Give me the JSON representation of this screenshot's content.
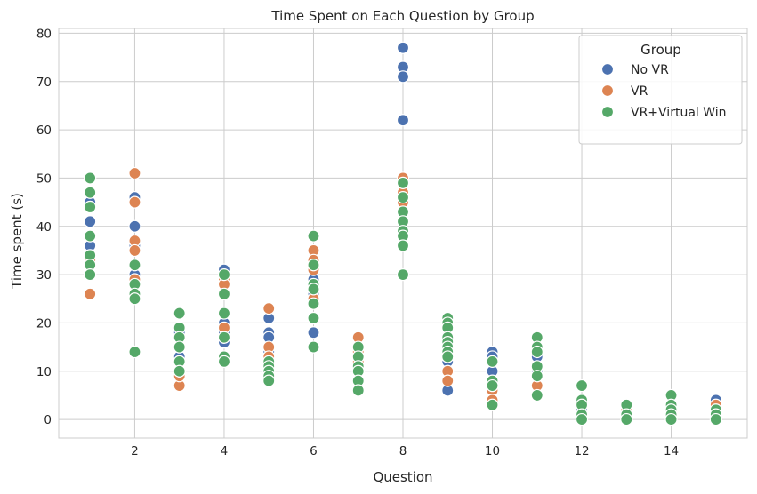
{
  "chart_data": {
    "type": "scatter",
    "title": "Time Spent on Each Question by Group",
    "xlabel": "Question",
    "ylabel": "Time spent (s)",
    "xlim": [
      0.3,
      15.7
    ],
    "ylim": [
      -3.85,
      81
    ],
    "xticks": [
      2,
      4,
      6,
      8,
      10,
      12,
      14
    ],
    "yticks": [
      0,
      10,
      20,
      30,
      40,
      50,
      60,
      70,
      80
    ],
    "grid": true,
    "legend": {
      "title": "Group",
      "placement": "top-right"
    },
    "series": [
      {
        "name": "No VR",
        "color": "#4c72b0",
        "points": [
          [
            1,
            45
          ],
          [
            1,
            41
          ],
          [
            1,
            36
          ],
          [
            1,
            44
          ],
          [
            2,
            46
          ],
          [
            2,
            40
          ],
          [
            2,
            36
          ],
          [
            2,
            30
          ],
          [
            3,
            13
          ],
          [
            3,
            12
          ],
          [
            3,
            18
          ],
          [
            4,
            31
          ],
          [
            4,
            20
          ],
          [
            4,
            16
          ],
          [
            4,
            18
          ],
          [
            5,
            21
          ],
          [
            5,
            18
          ],
          [
            5,
            17
          ],
          [
            5,
            14
          ],
          [
            6,
            29
          ],
          [
            6,
            28
          ],
          [
            6,
            26
          ],
          [
            6,
            18
          ],
          [
            7,
            12
          ],
          [
            7,
            13
          ],
          [
            8,
            77
          ],
          [
            8,
            73
          ],
          [
            8,
            71
          ],
          [
            8,
            62
          ],
          [
            9,
            12
          ],
          [
            9,
            6
          ],
          [
            9,
            14
          ],
          [
            10,
            14
          ],
          [
            10,
            13
          ],
          [
            10,
            10
          ],
          [
            11,
            13
          ],
          [
            11,
            10
          ],
          [
            12,
            3
          ],
          [
            12,
            2
          ],
          [
            13,
            3
          ],
          [
            13,
            2
          ],
          [
            14,
            3
          ],
          [
            14,
            2
          ],
          [
            15,
            4
          ],
          [
            15,
            2
          ]
        ]
      },
      {
        "name": "VR",
        "color": "#dd8452",
        "points": [
          [
            1,
            26
          ],
          [
            1,
            33
          ],
          [
            1,
            30
          ],
          [
            2,
            51
          ],
          [
            2,
            45
          ],
          [
            2,
            37
          ],
          [
            2,
            35
          ],
          [
            2,
            29
          ],
          [
            3,
            7
          ],
          [
            3,
            9
          ],
          [
            3,
            10
          ],
          [
            3,
            15
          ],
          [
            4,
            29
          ],
          [
            4,
            28
          ],
          [
            4,
            19
          ],
          [
            4,
            17
          ],
          [
            5,
            23
          ],
          [
            5,
            15
          ],
          [
            5,
            13
          ],
          [
            6,
            35
          ],
          [
            6,
            33
          ],
          [
            6,
            31
          ],
          [
            6,
            25
          ],
          [
            7,
            17
          ],
          [
            7,
            14
          ],
          [
            7,
            12
          ],
          [
            7,
            10
          ],
          [
            8,
            50
          ],
          [
            8,
            47
          ],
          [
            8,
            45
          ],
          [
            8,
            43
          ],
          [
            9,
            10
          ],
          [
            9,
            8
          ],
          [
            9,
            13
          ],
          [
            9,
            16
          ],
          [
            10,
            6
          ],
          [
            10,
            4
          ],
          [
            10,
            7
          ],
          [
            11,
            7
          ],
          [
            11,
            9
          ],
          [
            12,
            1
          ],
          [
            12,
            3
          ],
          [
            13,
            1
          ],
          [
            13,
            2
          ],
          [
            14,
            1
          ],
          [
            14,
            3
          ],
          [
            15,
            3
          ],
          [
            15,
            1
          ]
        ]
      },
      {
        "name": "VR+Virtual Win",
        "color": "#55a868",
        "points": [
          [
            1,
            50
          ],
          [
            1,
            47
          ],
          [
            1,
            44
          ],
          [
            1,
            38
          ],
          [
            1,
            34
          ],
          [
            1,
            32
          ],
          [
            1,
            30
          ],
          [
            2,
            32
          ],
          [
            2,
            28
          ],
          [
            2,
            26
          ],
          [
            2,
            25
          ],
          [
            2,
            14
          ],
          [
            3,
            22
          ],
          [
            3,
            19
          ],
          [
            3,
            17
          ],
          [
            3,
            15
          ],
          [
            3,
            12
          ],
          [
            3,
            10
          ],
          [
            4,
            30
          ],
          [
            4,
            26
          ],
          [
            4,
            22
          ],
          [
            4,
            17
          ],
          [
            4,
            13
          ],
          [
            4,
            12
          ],
          [
            5,
            12
          ],
          [
            5,
            11
          ],
          [
            5,
            10
          ],
          [
            5,
            9
          ],
          [
            5,
            8
          ],
          [
            6,
            38
          ],
          [
            6,
            32
          ],
          [
            6,
            28
          ],
          [
            6,
            27
          ],
          [
            6,
            24
          ],
          [
            6,
            21
          ],
          [
            6,
            15
          ],
          [
            7,
            15
          ],
          [
            7,
            13
          ],
          [
            7,
            11
          ],
          [
            7,
            10
          ],
          [
            7,
            8
          ],
          [
            7,
            6
          ],
          [
            8,
            49
          ],
          [
            8,
            46
          ],
          [
            8,
            43
          ],
          [
            8,
            41
          ],
          [
            8,
            39
          ],
          [
            8,
            38
          ],
          [
            8,
            36
          ],
          [
            8,
            30
          ],
          [
            9,
            21
          ],
          [
            9,
            20
          ],
          [
            9,
            19
          ],
          [
            9,
            17
          ],
          [
            9,
            16
          ],
          [
            9,
            15
          ],
          [
            9,
            14
          ],
          [
            9,
            13
          ],
          [
            10,
            12
          ],
          [
            10,
            8
          ],
          [
            10,
            7
          ],
          [
            10,
            3
          ],
          [
            11,
            17
          ],
          [
            11,
            15
          ],
          [
            11,
            14
          ],
          [
            11,
            11
          ],
          [
            11,
            9
          ],
          [
            11,
            5
          ],
          [
            12,
            7
          ],
          [
            12,
            4
          ],
          [
            12,
            3
          ],
          [
            12,
            1
          ],
          [
            12,
            0
          ],
          [
            13,
            3
          ],
          [
            13,
            1
          ],
          [
            13,
            0
          ],
          [
            14,
            5
          ],
          [
            14,
            3
          ],
          [
            14,
            2
          ],
          [
            14,
            1
          ],
          [
            14,
            0
          ],
          [
            15,
            2
          ],
          [
            15,
            1
          ],
          [
            15,
            0
          ]
        ]
      }
    ]
  }
}
